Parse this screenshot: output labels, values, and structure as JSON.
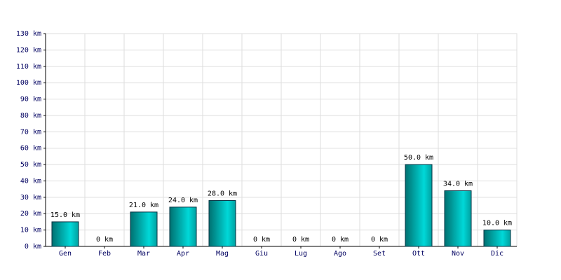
{
  "chart_data": {
    "type": "bar",
    "categories": [
      "Gen",
      "Feb",
      "Mar",
      "Apr",
      "Mag",
      "Giu",
      "Lug",
      "Ago",
      "Set",
      "Ott",
      "Nov",
      "Dic"
    ],
    "values": [
      15,
      0,
      21,
      24,
      28,
      0,
      0,
      0,
      0,
      50,
      34,
      10
    ],
    "value_labels": [
      "15.0 km",
      "0 km",
      "21.0 km",
      "24.0 km",
      "28.0 km",
      "0 km",
      "0 km",
      "0 km",
      "0 km",
      "50.0 km",
      "34.0 km",
      "10.0 km"
    ],
    "color": "#00d8d8",
    "ylim": [
      0,
      130
    ],
    "yticks": [
      {
        "value": 0,
        "label": "0 km"
      },
      {
        "value": 10,
        "label": "10 km"
      },
      {
        "value": 20,
        "label": "20 km"
      },
      {
        "value": 30,
        "label": "30 km"
      },
      {
        "value": 40,
        "label": "40 km"
      },
      {
        "value": 50,
        "label": "50 km"
      },
      {
        "value": 60,
        "label": "60 km"
      },
      {
        "value": 70,
        "label": "70 km"
      },
      {
        "value": 80,
        "label": "80 km"
      },
      {
        "value": 90,
        "label": "90 km"
      },
      {
        "value": 100,
        "label": "100 km"
      },
      {
        "value": 110,
        "label": "110 km"
      },
      {
        "value": 120,
        "label": "120 km"
      },
      {
        "value": 130,
        "label": "130 km"
      }
    ],
    "grid": true
  }
}
